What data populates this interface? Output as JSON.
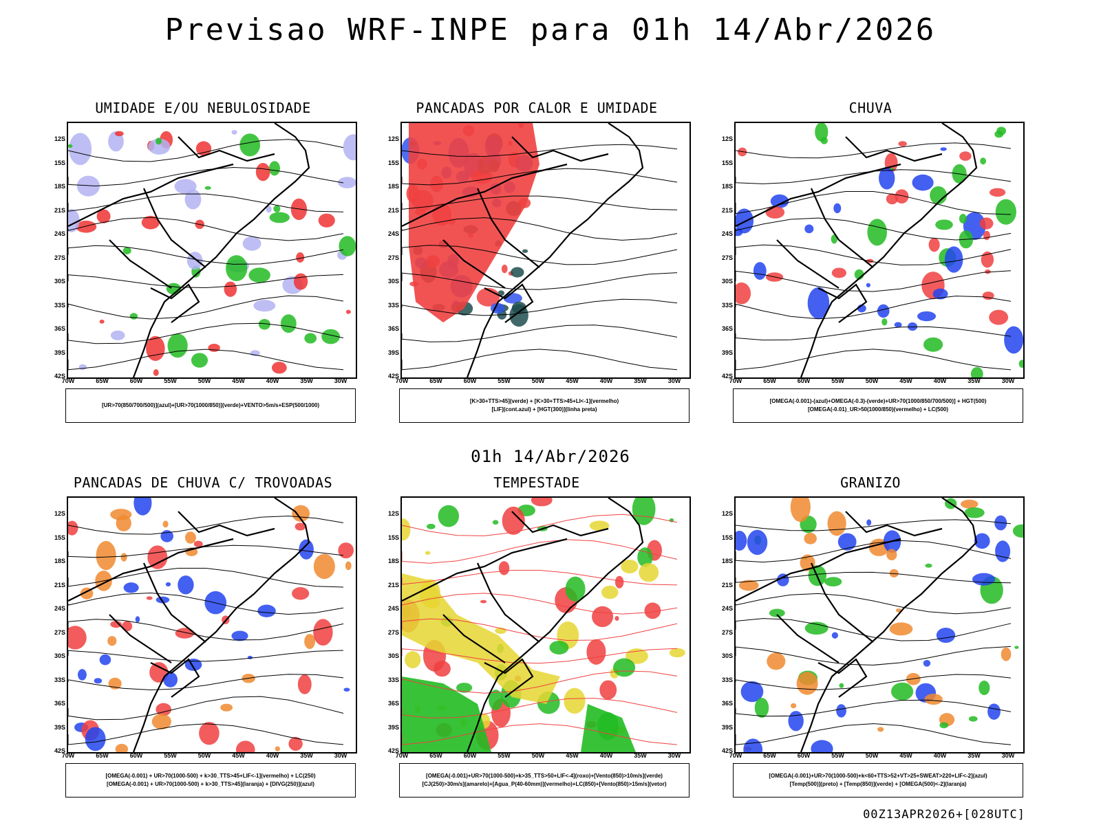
{
  "header": {
    "title": "Previsao WRF-INPE  para 01h 14/Abr/2026"
  },
  "middle_title": "01h 14/Abr/2026",
  "footer": "00Z13APR2026+[028UTC]",
  "axes": {
    "lat_labels": [
      "12S",
      "15S",
      "18S",
      "21S",
      "24S",
      "27S",
      "30S",
      "33S",
      "36S",
      "39S",
      "42S"
    ],
    "lon_labels": [
      "70W",
      "65W",
      "60W",
      "55W",
      "50W",
      "45W",
      "40W",
      "35W",
      "30W"
    ]
  },
  "panels": [
    {
      "id": "umidade",
      "title": "UMIDADE E/OU NEBULOSIDADE",
      "legend": [
        "[UR>70(850/700/500)](azul)+[UR>70(1000/850)](verde)+VENTO>5m/s+ESP(500/1000)"
      ],
      "colors": {
        "blue": "#b3b3f2",
        "green": "#22bb22",
        "red": "#ee3333"
      }
    },
    {
      "id": "pancadas-calor",
      "title": "PANCADAS POR CALOR E UMIDADE",
      "legend": [
        "[K>30+TTS>45](verde) + [K>30+TTS>45+LI<-1](vermelho)",
        "[LIF](cont.azul) + [HGT(300)](linha preta)"
      ],
      "colors": {
        "teal": "#1e4d4d",
        "red": "#f04040",
        "blue": "#3355ee"
      }
    },
    {
      "id": "chuva",
      "title": "CHUVA",
      "legend": [
        "[OMEGA(-0.001)-(azul)+OMEGA(-0.3)-(verde)+UR>70(1000/850/700/500)] + HGT(500)",
        "[OMEGA(-0.01)_UR>50(1000/850)(vermelho) + LC(500)"
      ],
      "colors": {
        "red": "#f04040",
        "blue": "#2244ee",
        "green": "#22bb22"
      }
    },
    {
      "id": "trovoadas",
      "title": "PANCADAS DE CHUVA C/ TROVOADAS",
      "legend": [
        "[OMEGA(-0.001) + UR>70(1000-500) + k>30_TTS>45+LIF<-1](vermelho) + LC(250)",
        "[OMEGA(-0.001) + UR>70(1000-500) + k>30_TTS>45](laranja) + [DIVG(250)](azul)"
      ],
      "colors": {
        "red": "#f04040",
        "orange": "#f08a30",
        "blue": "#2244ee"
      }
    },
    {
      "id": "tempestade",
      "title": "TEMPESTADE",
      "legend": [
        "[OMEGA(-0.001)+UR>70(1000-500)+k>35_TTS>50+LIF<-4](roxo)+[Vento(850)>10m/s](verde)",
        "[CJ(250)>30m/s](amarelo)+[Agua_P(40-60mm)](vermelho)+LC(850)+[Vento(850)>15m/s](vetor)"
      ],
      "colors": {
        "yellow": "#e6d633",
        "green": "#22bb22",
        "red": "#f04040"
      }
    },
    {
      "id": "granizo",
      "title": "GRANIZO",
      "legend": [
        "[OMEGA(-0.001)+UR>70(1000-500)+k<60+TTS>52+VT>25+SWEAT>220+LIF<-2](azul)",
        "[Temp(500)](preto) + [Temp(850)](verde) + [OMEGA(500)<-2](laranja)"
      ],
      "colors": {
        "green": "#22bb22",
        "orange": "#f08a30",
        "blue": "#2244ee"
      }
    }
  ]
}
